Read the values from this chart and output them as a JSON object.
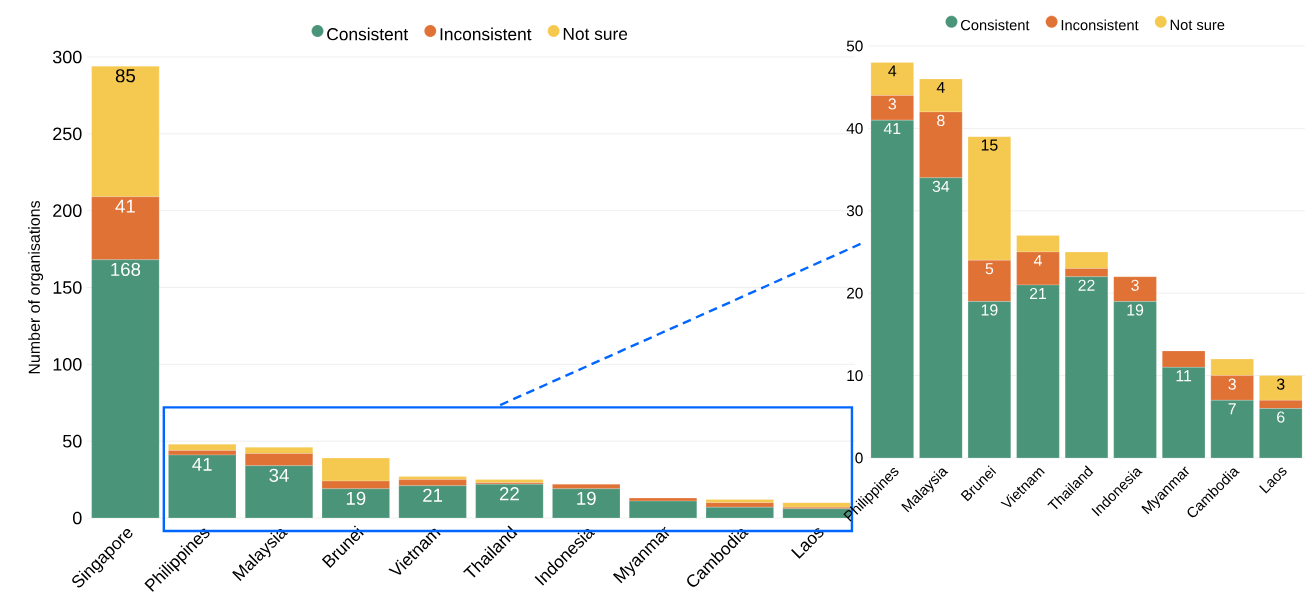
{
  "chart_data": [
    {
      "type": "bar",
      "stacked": true,
      "ylabel": "Number of organisations",
      "categories": [
        "Singapore",
        "Philippines",
        "Malaysia",
        "Brunei",
        "Vietnam",
        "Thailand",
        "Indonesia",
        "Myanmar",
        "Cambodia",
        "Laos"
      ],
      "ylim": [
        0,
        300
      ],
      "yticks": [
        0,
        50,
        100,
        150,
        200,
        250,
        300
      ],
      "grid": "y",
      "legend": "top",
      "series": [
        {
          "name": "Consistent",
          "color": "#4a9479",
          "values": [
            168,
            41,
            34,
            19,
            21,
            22,
            19,
            11,
            7,
            6
          ],
          "value_labels": [
            "168",
            "41",
            "34",
            "19",
            "21",
            "22",
            "19",
            null,
            null,
            null
          ]
        },
        {
          "name": "Inconsistent",
          "color": "#e07236",
          "values": [
            41,
            3,
            8,
            5,
            4,
            1,
            3,
            2,
            3,
            1
          ],
          "value_labels": [
            "41",
            null,
            null,
            null,
            null,
            null,
            null,
            null,
            null,
            null
          ]
        },
        {
          "name": "Not sure",
          "color": "#f5c84f",
          "values": [
            85,
            4,
            4,
            15,
            2,
            2,
            0,
            0,
            2,
            3
          ],
          "value_labels": [
            "85",
            null,
            null,
            null,
            null,
            null,
            null,
            null,
            null,
            null
          ]
        }
      ]
    },
    {
      "type": "bar",
      "stacked": true,
      "categories": [
        "Philippines",
        "Malaysia",
        "Brunei",
        "Vietnam",
        "Thailand",
        "Indonesia",
        "Myanmar",
        "Cambodia",
        "Laos"
      ],
      "ylim": [
        0,
        50
      ],
      "yticks": [
        0,
        10,
        20,
        30,
        40,
        50
      ],
      "grid": "y",
      "legend": "top",
      "series": [
        {
          "name": "Consistent",
          "color": "#4a9479",
          "values": [
            41,
            34,
            19,
            21,
            22,
            19,
            11,
            7,
            6
          ],
          "value_labels": [
            "41",
            "34",
            "19",
            "21",
            "22",
            "19",
            "11",
            "7",
            "6"
          ]
        },
        {
          "name": "Inconsistent",
          "color": "#e07236",
          "values": [
            3,
            8,
            5,
            4,
            1,
            3,
            2,
            3,
            1
          ],
          "value_labels": [
            "3",
            "8",
            "5",
            "4",
            null,
            "3",
            null,
            "3",
            null
          ]
        },
        {
          "name": "Not sure",
          "color": "#f5c84f",
          "values": [
            4,
            4,
            15,
            2,
            2,
            0,
            0,
            2,
            3
          ],
          "value_labels": [
            "4",
            "4",
            "15",
            null,
            null,
            null,
            null,
            null,
            "3"
          ]
        }
      ]
    }
  ]
}
